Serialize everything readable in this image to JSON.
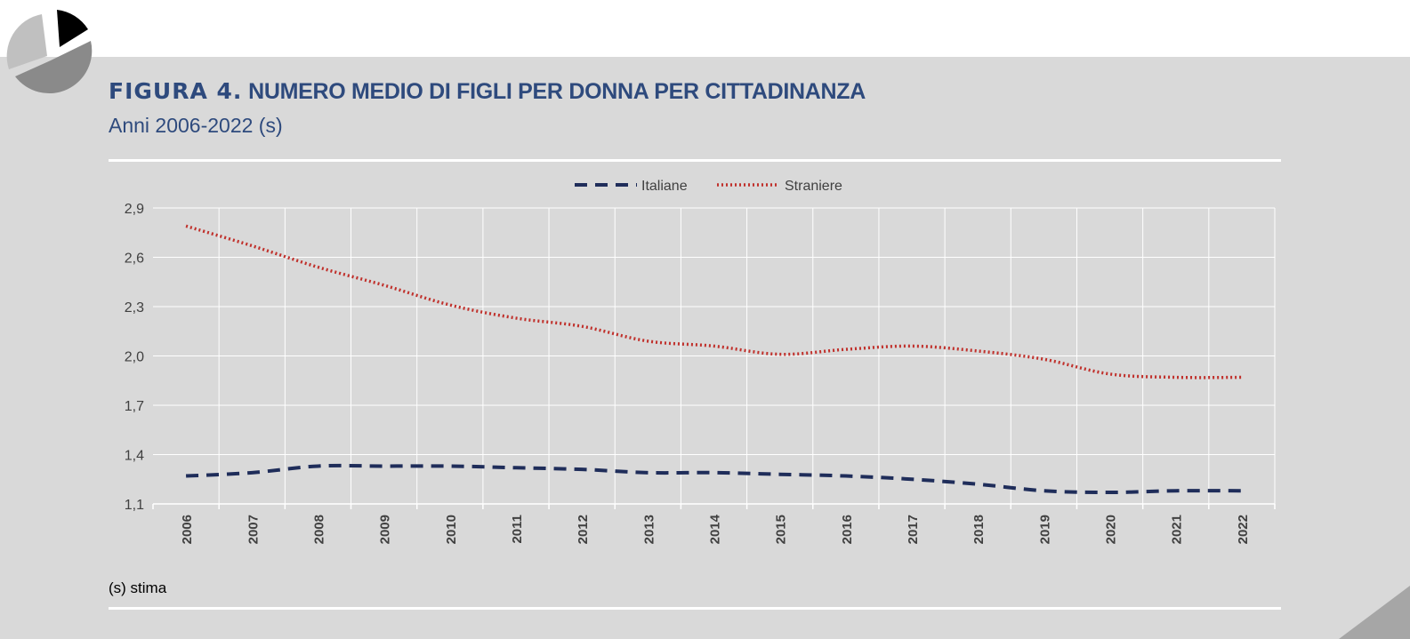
{
  "header": {
    "figure_label": "FIGURA 4.",
    "title": "NUMERO MEDIO DI FIGLI PER DONNA PER CITTADINANZA",
    "subtitle": "Anni 2006-2022 (s)"
  },
  "footer": {
    "note": "(s) stima"
  },
  "colors": {
    "italiane": "#1f2d5a",
    "straniere": "#c0302b",
    "title": "#2e4a7d"
  },
  "chart_data": {
    "type": "line",
    "title": "NUMERO MEDIO DI FIGLI PER DONNA PER CITTADINANZA",
    "categories": [
      "2006",
      "2007",
      "2008",
      "2009",
      "2010",
      "2011",
      "2012",
      "2013",
      "2014",
      "2015",
      "2016",
      "2017",
      "2018",
      "2019",
      "2020",
      "2021",
      "2022"
    ],
    "series": [
      {
        "name": "Italiane",
        "style": "dashed",
        "values": [
          1.27,
          1.29,
          1.33,
          1.33,
          1.33,
          1.32,
          1.31,
          1.29,
          1.29,
          1.28,
          1.27,
          1.25,
          1.22,
          1.18,
          1.17,
          1.18,
          1.18
        ]
      },
      {
        "name": "Straniere",
        "style": "dotted",
        "values": [
          2.79,
          2.67,
          2.54,
          2.43,
          2.31,
          2.23,
          2.18,
          2.09,
          2.06,
          2.01,
          2.04,
          2.06,
          2.03,
          1.98,
          1.89,
          1.87,
          1.87
        ]
      }
    ],
    "yticks": [
      "1,1",
      "1,4",
      "1,7",
      "2,0",
      "2,3",
      "2,6",
      "2,9"
    ],
    "ylim": [
      1.1,
      2.9
    ],
    "xlabel": "",
    "ylabel": "",
    "grid": true,
    "legend": "top-center"
  }
}
